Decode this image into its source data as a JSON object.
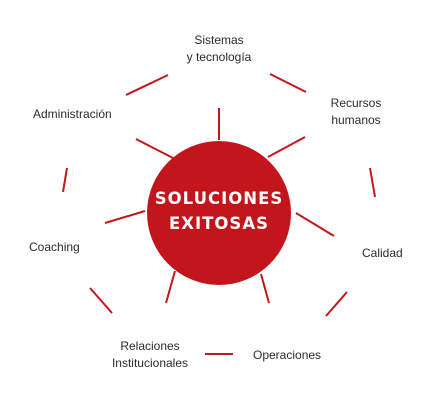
{
  "center": {
    "line1": "SOLUCIONES",
    "line2": "EXITOSAS"
  },
  "nodes": {
    "sistemas": {
      "line1": "Sistemas",
      "line2": "y tecnología"
    },
    "recursos": {
      "line1": "Recursos",
      "line2": "humanos"
    },
    "calidad": {
      "label": "Calidad"
    },
    "operaciones": {
      "label": "Operaciones"
    },
    "relaciones": {
      "line1": "Relaciones",
      "line2": "Institucionales"
    },
    "coaching": {
      "label": "Coaching"
    },
    "administracion": {
      "label": "Administración"
    }
  },
  "colors": {
    "accent": "#c3161c",
    "text": "#2b2b2b",
    "background": "#ffffff"
  }
}
